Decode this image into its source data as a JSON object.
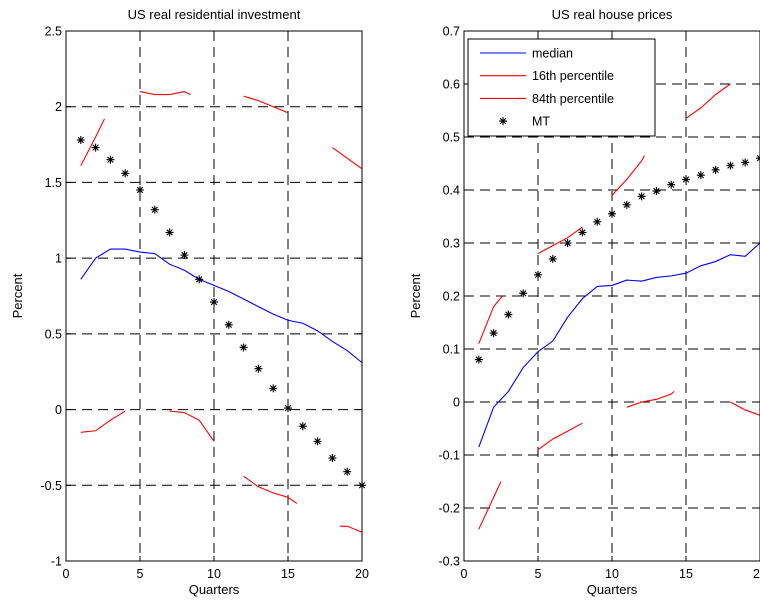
{
  "chart_data": [
    {
      "type": "line",
      "title": "US real residential investment",
      "xlabel": "Quarters",
      "ylabel": "Percent",
      "xlim": [
        0,
        20
      ],
      "ylim": [
        -1,
        2.5
      ],
      "xticks": [
        0,
        5,
        10,
        15,
        20
      ],
      "yticks": [
        -1,
        -0.5,
        0,
        0.5,
        1,
        1.5,
        2,
        2.5
      ],
      "xtick_labels": [
        "0",
        "5",
        "10",
        "15",
        "20"
      ],
      "ytick_labels": [
        "-1",
        "-0.5",
        "0",
        "0.5",
        "1",
        "1.5",
        "2",
        "2.5"
      ],
      "grid": true,
      "legend": null,
      "series": [
        {
          "role": "median",
          "color": "#0000ff",
          "x": [
            1,
            2,
            3,
            4,
            5,
            6,
            7,
            8,
            9,
            10,
            11,
            12,
            13,
            14,
            15,
            16,
            17,
            18,
            19,
            20
          ],
          "y": [
            0.86,
            1.0,
            1.06,
            1.06,
            1.04,
            1.03,
            0.96,
            0.92,
            0.86,
            0.82,
            0.78,
            0.73,
            0.68,
            0.63,
            0.59,
            0.57,
            0.52,
            0.45,
            0.39,
            0.31
          ]
        },
        {
          "role": "16th",
          "color": "#ff0000",
          "segments": [
            {
              "x": [
                1,
                2,
                2.6
              ],
              "y": [
                1.61,
                1.8,
                1.92
              ]
            },
            {
              "x": [
                5,
                6,
                7,
                8,
                8.4
              ],
              "y": [
                2.1,
                2.08,
                2.08,
                2.1,
                2.08
              ]
            },
            {
              "x": [
                12,
                13,
                14,
                15
              ],
              "y": [
                2.07,
                2.04,
                2.0,
                1.96
              ]
            },
            {
              "x": [
                18,
                19,
                20
              ],
              "y": [
                1.73,
                1.66,
                1.59
              ]
            }
          ]
        },
        {
          "role": "84th",
          "color": "#ff0000",
          "segments": [
            {
              "x": [
                1,
                2,
                3,
                4
              ],
              "y": [
                -0.15,
                -0.14,
                -0.07,
                -0.01
              ]
            },
            {
              "x": [
                7,
                8,
                9,
                10
              ],
              "y": [
                -0.01,
                -0.02,
                -0.07,
                -0.21
              ]
            },
            {
              "x": [
                12,
                13,
                14,
                15,
                15.6
              ],
              "y": [
                -0.44,
                -0.51,
                -0.55,
                -0.58,
                -0.62
              ]
            },
            {
              "x": [
                18.5,
                19,
                20
              ],
              "y": [
                -0.77,
                -0.77,
                -0.81
              ]
            }
          ]
        },
        {
          "role": "MT",
          "marker": "*",
          "x": [
            1,
            2,
            3,
            4,
            5,
            6,
            7,
            8,
            9,
            10,
            11,
            12,
            13,
            14,
            15,
            16,
            17,
            18,
            19,
            20
          ],
          "y": [
            1.78,
            1.73,
            1.65,
            1.56,
            1.45,
            1.32,
            1.17,
            1.02,
            0.86,
            0.71,
            0.56,
            0.41,
            0.27,
            0.14,
            0.01,
            -0.11,
            -0.21,
            -0.32,
            -0.41,
            -0.5
          ]
        }
      ]
    },
    {
      "type": "line",
      "title": "US real house prices",
      "xlabel": "Quarters",
      "ylabel": "Percent",
      "xlim": [
        0,
        20
      ],
      "ylim": [
        -0.3,
        0.7
      ],
      "xticks": [
        0,
        5,
        10,
        15,
        20
      ],
      "yticks": [
        -0.3,
        -0.2,
        -0.1,
        0,
        0.1,
        0.2,
        0.3,
        0.4,
        0.5,
        0.6,
        0.7
      ],
      "xtick_labels": [
        "0",
        "5",
        "10",
        "15",
        "20"
      ],
      "ytick_labels": [
        "-0.3",
        "-0.2",
        "-0.1",
        "0",
        "0.1",
        "0.2",
        "0.3",
        "0.4",
        "0.5",
        "0.6",
        "0.7"
      ],
      "grid": true,
      "legend": {
        "location": "top-left",
        "entries": [
          {
            "label": "median",
            "style": "line",
            "color": "#0000ff"
          },
          {
            "label": "16th percentile",
            "style": "line",
            "color": "#ff0000"
          },
          {
            "label": "84th percentile",
            "style": "line",
            "color": "#ff0000"
          },
          {
            "label": "MT",
            "style": "marker",
            "marker": "*",
            "color": "#000000"
          }
        ]
      },
      "series": [
        {
          "name": "median",
          "color": "#0000ff",
          "x": [
            1,
            2,
            3,
            4,
            5,
            6,
            7,
            8,
            9,
            10,
            11,
            12,
            13,
            14,
            15,
            16,
            17,
            18,
            19,
            20
          ],
          "y": [
            -0.085,
            -0.01,
            0.02,
            0.065,
            0.095,
            0.115,
            0.16,
            0.195,
            0.218,
            0.22,
            0.23,
            0.228,
            0.235,
            0.238,
            0.243,
            0.257,
            0.265,
            0.278,
            0.275,
            0.3
          ]
        },
        {
          "name": "16th percentile",
          "color": "#ff0000",
          "segments": [
            {
              "x": [
                1,
                2,
                2.6
              ],
              "y": [
                0.11,
                0.18,
                0.2
              ]
            },
            {
              "x": [
                5,
                6,
                7,
                8
              ],
              "y": [
                0.28,
                0.295,
                0.31,
                0.33
              ]
            },
            {
              "x": [
                10,
                11,
                12,
                12.2
              ],
              "y": [
                0.39,
                0.42,
                0.455,
                0.465
              ]
            },
            {
              "x": [
                15,
                16,
                17,
                18
              ],
              "y": [
                0.535,
                0.555,
                0.58,
                0.6
              ]
            }
          ]
        },
        {
          "name": "84th percentile",
          "color": "#ff0000",
          "segments": [
            {
              "x": [
                1,
                2,
                2.5
              ],
              "y": [
                -0.24,
                -0.18,
                -0.15
              ]
            },
            {
              "x": [
                5,
                6,
                7,
                8
              ],
              "y": [
                -0.09,
                -0.07,
                -0.055,
                -0.04
              ]
            },
            {
              "x": [
                11,
                12,
                13,
                14,
                14.2
              ],
              "y": [
                -0.01,
                0,
                0.005,
                0.015,
                0.02
              ]
            },
            {
              "x": [
                18,
                19,
                20
              ],
              "y": [
                0.0,
                -0.015,
                -0.025
              ]
            }
          ]
        },
        {
          "name": "MT",
          "marker": "*",
          "x": [
            1,
            2,
            3,
            4,
            5,
            6,
            7,
            8,
            9,
            10,
            11,
            12,
            13,
            14,
            15,
            16,
            17,
            18,
            19,
            20
          ],
          "y": [
            0.08,
            0.13,
            0.165,
            0.205,
            0.24,
            0.27,
            0.3,
            0.32,
            0.34,
            0.355,
            0.372,
            0.388,
            0.398,
            0.41,
            0.42,
            0.428,
            0.438,
            0.446,
            0.452,
            0.46
          ]
        }
      ]
    }
  ]
}
